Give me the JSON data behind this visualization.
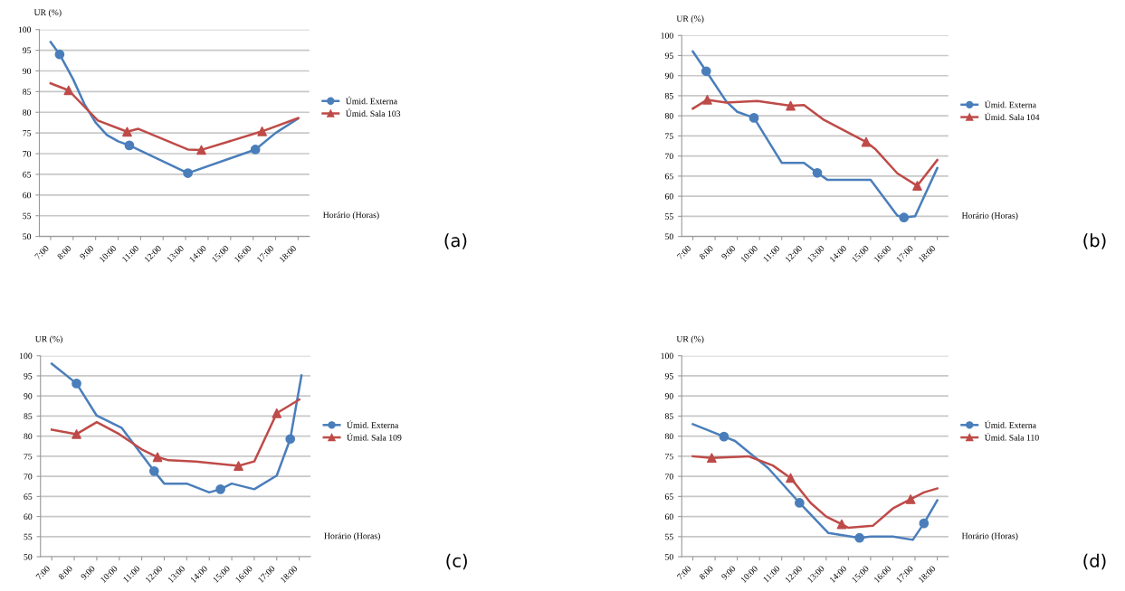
{
  "chart_data": [
    {
      "type": "line",
      "ylabel": "UR (%)",
      "xlabel": "Horário (Horas)",
      "annotations": [
        "(a)"
      ],
      "grid": "y",
      "legend": "right",
      "xlim": [
        6.5,
        18.5
      ],
      "xticks": [
        {
          "value": 7,
          "label": "7:00"
        },
        {
          "value": 8,
          "label": "8:00"
        },
        {
          "value": 9,
          "label": "9:00"
        },
        {
          "value": 10,
          "label": "10:00"
        },
        {
          "value": 11,
          "label": "11:00"
        },
        {
          "value": 12,
          "label": "12:00"
        },
        {
          "value": 13,
          "label": "13:00"
        },
        {
          "value": 14,
          "label": "14:00"
        },
        {
          "value": 15,
          "label": "15:00"
        },
        {
          "value": 16,
          "label": "16:00"
        },
        {
          "value": 17,
          "label": "17:00"
        },
        {
          "value": 18,
          "label": "18:00"
        }
      ],
      "ylim": [
        50,
        100
      ],
      "yticks": [
        50,
        55,
        60,
        65,
        70,
        75,
        80,
        85,
        90,
        95,
        100
      ],
      "series": [
        {
          "name": "Úmid. Externa",
          "type": "line",
          "color": "#4a7ebb",
          "x": [
            7,
            7.4,
            8,
            8.5,
            9,
            9.5,
            10,
            10.5,
            13.1,
            16.1,
            17,
            18
          ],
          "values": [
            97,
            94,
            88,
            82,
            77.5,
            74.5,
            73,
            72,
            65.3,
            71,
            75,
            78.5
          ]
        },
        {
          "type": "scatter",
          "color": "#4a7ebb",
          "marker": "circle",
          "x": [
            7.4,
            10.5,
            13.1,
            16.1
          ],
          "values": [
            94,
            72,
            65.3,
            71
          ]
        },
        {
          "name": "Úmid. Sala 103",
          "type": "line",
          "color": "#be4b48",
          "x": [
            7,
            7.8,
            9.1,
            10.4,
            10.9,
            13.1,
            13.7,
            16.4,
            18
          ],
          "values": [
            87,
            85.3,
            78,
            75.3,
            76,
            71,
            70.9,
            75.4,
            78.6
          ]
        },
        {
          "type": "scatter",
          "color": "#be4b48",
          "marker": "triangle",
          "x": [
            7.8,
            10.4,
            13.7,
            16.4
          ],
          "values": [
            85.3,
            75.3,
            70.9,
            75.4
          ]
        }
      ]
    },
    {
      "type": "line",
      "ylabel": "UR (%)",
      "xlabel": "Horário (Horas)",
      "annotations": [
        "(b)"
      ],
      "grid": "y",
      "legend": "right",
      "xlim": [
        6.5,
        18.5
      ],
      "xticks": [
        {
          "value": 7,
          "label": "7:00"
        },
        {
          "value": 8,
          "label": "8:00"
        },
        {
          "value": 9,
          "label": "9:00"
        },
        {
          "value": 10,
          "label": "10:00"
        },
        {
          "value": 11,
          "label": "11:00"
        },
        {
          "value": 12,
          "label": "12:00"
        },
        {
          "value": 13,
          "label": "13:00"
        },
        {
          "value": 14,
          "label": "14:00"
        },
        {
          "value": 15,
          "label": "15:00"
        },
        {
          "value": 16,
          "label": "16:00"
        },
        {
          "value": 17,
          "label": "17:00"
        },
        {
          "value": 18,
          "label": "18:00"
        }
      ],
      "ylim": [
        50,
        100
      ],
      "yticks": [
        50,
        55,
        60,
        65,
        70,
        75,
        80,
        85,
        90,
        95,
        100
      ],
      "series": [
        {
          "name": "Úmid. Externa",
          "type": "line",
          "color": "#4a7ebb",
          "x": [
            7,
            7.6,
            8.5,
            9,
            9.75,
            11,
            12,
            12.6,
            13.05,
            15,
            16.2,
            16.5,
            17,
            18
          ],
          "values": [
            96,
            91.1,
            83.6,
            81,
            79.5,
            68.3,
            68.3,
            65.8,
            64.1,
            64.1,
            55.2,
            54.7,
            55,
            67
          ]
        },
        {
          "type": "scatter",
          "color": "#4a7ebb",
          "marker": "circle",
          "x": [
            7.6,
            9.75,
            12.6,
            16.5
          ],
          "values": [
            91.1,
            79.5,
            65.8,
            54.7
          ]
        },
        {
          "name": "Úmid. Sala 104",
          "type": "line",
          "color": "#be4b48",
          "x": [
            7,
            7.65,
            8.5,
            9.9,
            11.4,
            12,
            12.9,
            14.8,
            15.2,
            16.2,
            17.1,
            18
          ],
          "values": [
            81.8,
            84,
            83.3,
            83.7,
            82.5,
            82.7,
            79,
            73.5,
            71.8,
            65.7,
            62.6,
            69
          ]
        },
        {
          "type": "scatter",
          "color": "#be4b48",
          "marker": "triangle",
          "x": [
            7.65,
            11.4,
            14.8,
            17.1
          ],
          "values": [
            84,
            82.5,
            73.5,
            62.6
          ]
        }
      ]
    },
    {
      "type": "line",
      "ylabel": "UR (%)",
      "xlabel": "Horário (Horas)",
      "annotations": [
        "(c)"
      ],
      "grid": "y",
      "legend": "right",
      "xlim": [
        6.5,
        18.5
      ],
      "xticks": [
        {
          "value": 7,
          "label": "7:00"
        },
        {
          "value": 8,
          "label": "8:00"
        },
        {
          "value": 9,
          "label": "9:00"
        },
        {
          "value": 10,
          "label": "10:00"
        },
        {
          "value": 11,
          "label": "11:00"
        },
        {
          "value": 12,
          "label": "12:00"
        },
        {
          "value": 13,
          "label": "13:00"
        },
        {
          "value": 14,
          "label": "14:00"
        },
        {
          "value": 15,
          "label": "15:00"
        },
        {
          "value": 16,
          "label": "16:00"
        },
        {
          "value": 17,
          "label": "17:00"
        },
        {
          "value": 18,
          "label": "18:00"
        }
      ],
      "ylim": [
        50,
        100
      ],
      "yticks": [
        50,
        55,
        60,
        65,
        70,
        75,
        80,
        85,
        90,
        95,
        100
      ],
      "series": [
        {
          "name": "Úmid. Externa",
          "type": "line",
          "color": "#4a7ebb",
          "x": [
            7,
            8.1,
            9,
            10.1,
            11.55,
            12,
            13,
            14,
            14.5,
            15,
            16,
            17,
            17.6,
            18.1
          ],
          "values": [
            98,
            93.1,
            85.1,
            82.1,
            71.3,
            68.2,
            68.2,
            66,
            66.8,
            68.2,
            66.8,
            70.2,
            79.3,
            95.1
          ]
        },
        {
          "type": "scatter",
          "color": "#4a7ebb",
          "marker": "circle",
          "x": [
            8.1,
            11.55,
            14.5,
            17.6
          ],
          "values": [
            93.1,
            71.3,
            66.8,
            79.3
          ]
        },
        {
          "name": "Úmid. Sala 109",
          "type": "line",
          "color": "#be4b48",
          "x": [
            7,
            8.1,
            9,
            10,
            11,
            11.7,
            12.2,
            13.4,
            15.3,
            16,
            17,
            18
          ],
          "values": [
            81.6,
            80.5,
            83.5,
            80.5,
            76.7,
            74.8,
            74,
            73.7,
            72.6,
            73.7,
            85.7,
            89.1
          ]
        },
        {
          "type": "scatter",
          "color": "#be4b48",
          "marker": "triangle",
          "x": [
            8.1,
            11.7,
            15.3,
            17
          ],
          "values": [
            80.5,
            74.8,
            72.6,
            85.7
          ]
        }
      ]
    },
    {
      "type": "line",
      "ylabel": "UR (%)",
      "xlabel": "Horário (Horas)",
      "annotations": [
        "(d)"
      ],
      "grid": "y",
      "legend": "right",
      "xlim": [
        6.5,
        18.5
      ],
      "xticks": [
        {
          "value": 7,
          "label": "7:00"
        },
        {
          "value": 8,
          "label": "8:00"
        },
        {
          "value": 9,
          "label": "9:00"
        },
        {
          "value": 10,
          "label": "10:00"
        },
        {
          "value": 11,
          "label": "11:00"
        },
        {
          "value": 12,
          "label": "12:00"
        },
        {
          "value": 13,
          "label": "13:00"
        },
        {
          "value": 14,
          "label": "14:00"
        },
        {
          "value": 15,
          "label": "15:00"
        },
        {
          "value": 16,
          "label": "16:00"
        },
        {
          "value": 17,
          "label": "17:00"
        },
        {
          "value": 18,
          "label": "18:00"
        }
      ],
      "ylim": [
        50,
        100
      ],
      "yticks": [
        50,
        55,
        60,
        65,
        70,
        75,
        80,
        85,
        90,
        95,
        100
      ],
      "series": [
        {
          "name": "Úmid. Externa",
          "type": "line",
          "color": "#4a7ebb",
          "x": [
            7,
            8.4,
            8.9,
            10.4,
            11.8,
            13.1,
            14.5,
            15,
            16,
            16.9,
            17.4,
            18
          ],
          "values": [
            83,
            79.9,
            78.8,
            72,
            63.4,
            55.9,
            54.7,
            55,
            55,
            54.2,
            58.3,
            64
          ]
        },
        {
          "type": "scatter",
          "color": "#4a7ebb",
          "marker": "circle",
          "x": [
            8.4,
            11.8,
            14.5,
            17.4
          ],
          "values": [
            79.9,
            63.4,
            54.7,
            58.3
          ]
        },
        {
          "name": "Úmid. Sala 110",
          "type": "line",
          "color": "#be4b48",
          "x": [
            7,
            7.85,
            9.5,
            10.6,
            11.4,
            12.3,
            13,
            13.7,
            14,
            15.1,
            16,
            16.8,
            17.4,
            18
          ],
          "values": [
            75,
            74.6,
            75,
            72.7,
            69.6,
            63.4,
            60,
            58.1,
            57.2,
            57.7,
            62,
            64.3,
            66,
            67
          ]
        },
        {
          "type": "scatter",
          "color": "#be4b48",
          "marker": "triangle",
          "x": [
            7.85,
            11.4,
            13.7,
            16.8
          ],
          "values": [
            74.6,
            69.6,
            58.1,
            64.3
          ]
        }
      ]
    }
  ]
}
